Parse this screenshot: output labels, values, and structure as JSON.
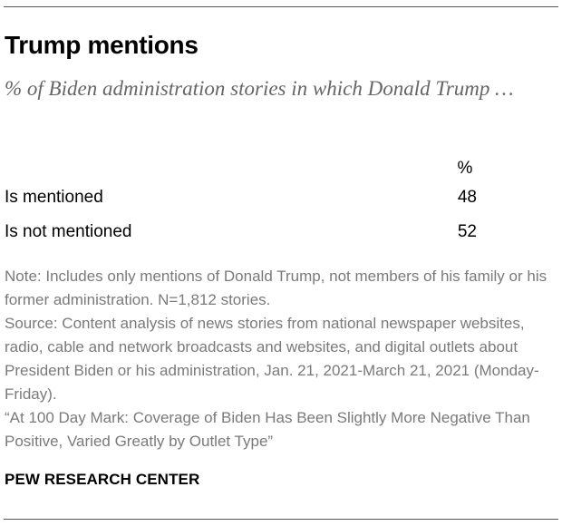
{
  "title": "Trump mentions",
  "subtitle": "% of Biden administration stories in which Donald Trump …",
  "chart_data": {
    "type": "table",
    "title": "Trump mentions",
    "subtitle": "% of Biden administration stories in which Donald Trump …",
    "column_header": "%",
    "categories": [
      "Is mentioned",
      "Is not mentioned"
    ],
    "values": [
      48,
      52
    ],
    "rows": [
      {
        "label": "Is mentioned",
        "value": "48"
      },
      {
        "label": "Is not mentioned",
        "value": "52"
      }
    ]
  },
  "note": "Note: Includes only mentions of Donald Trump, not members of his family or his former administration. N=1,812 stories.",
  "source": "Source: Content analysis of news stories from national newspaper websites, radio, cable and network broadcasts and websites, and digital outlets about President Biden or his administration, Jan. 21, 2021-March 21, 2021 (Monday-Friday).",
  "report_title": "“At 100 Day Mark: Coverage of Biden Has Been Slightly More Negative Than Positive, Varied Greatly by Outlet Type”",
  "brand": "PEW RESEARCH CENTER",
  "colors": {
    "text": "#000000",
    "subtitle": "#666666",
    "note": "#7a7a7a",
    "rule": "#555555"
  }
}
